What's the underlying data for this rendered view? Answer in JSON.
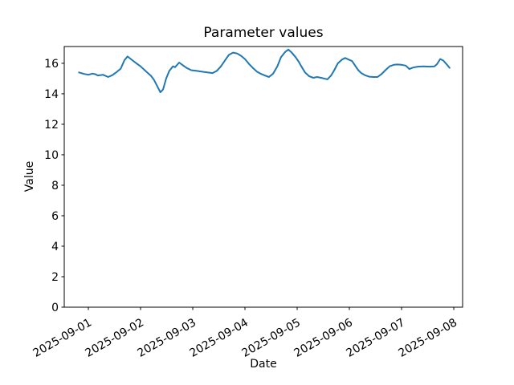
{
  "figure": {
    "background": "#ffffff"
  },
  "chart_data": {
    "type": "line",
    "title": "Parameter values",
    "xlabel": "Date",
    "ylabel": "Value",
    "grid": false,
    "legend": "none",
    "line_color": "#1f77b4",
    "axis_color": "#000000",
    "x_epoch": "2025-09-01",
    "x_tick_days": [
      0,
      1,
      2,
      3,
      4,
      5,
      6,
      7
    ],
    "x_tick_labels": [
      "2025-09-01",
      "2025-09-02",
      "2025-09-03",
      "2025-09-04",
      "2025-09-05",
      "2025-09-06",
      "2025-09-07",
      "2025-09-08"
    ],
    "x_tick_rotation_deg": 30,
    "y_ticks": [
      0,
      2,
      4,
      6,
      8,
      10,
      12,
      14,
      16
    ],
    "xlim_days": [
      -0.462,
      7.169
    ],
    "ylim": [
      0,
      17.1
    ],
    "series": [
      {
        "name": "parameter",
        "points_day_value": [
          [
            -0.18,
            15.4
          ],
          [
            -0.08,
            15.3
          ],
          [
            0.0,
            15.25
          ],
          [
            0.08,
            15.32
          ],
          [
            0.14,
            15.28
          ],
          [
            0.18,
            15.2
          ],
          [
            0.28,
            15.25
          ],
          [
            0.38,
            15.1
          ],
          [
            0.46,
            15.22
          ],
          [
            0.54,
            15.42
          ],
          [
            0.62,
            15.65
          ],
          [
            0.69,
            16.2
          ],
          [
            0.75,
            16.45
          ],
          [
            0.85,
            16.18
          ],
          [
            0.92,
            16.0
          ],
          [
            1.0,
            15.8
          ],
          [
            1.11,
            15.45
          ],
          [
            1.2,
            15.18
          ],
          [
            1.26,
            14.9
          ],
          [
            1.32,
            14.5
          ],
          [
            1.38,
            14.1
          ],
          [
            1.43,
            14.28
          ],
          [
            1.49,
            15.0
          ],
          [
            1.55,
            15.5
          ],
          [
            1.62,
            15.8
          ],
          [
            1.66,
            15.74
          ],
          [
            1.74,
            16.05
          ],
          [
            1.82,
            15.85
          ],
          [
            1.88,
            15.7
          ],
          [
            1.97,
            15.55
          ],
          [
            2.08,
            15.5
          ],
          [
            2.18,
            15.45
          ],
          [
            2.28,
            15.4
          ],
          [
            2.38,
            15.36
          ],
          [
            2.46,
            15.5
          ],
          [
            2.54,
            15.8
          ],
          [
            2.62,
            16.2
          ],
          [
            2.69,
            16.55
          ],
          [
            2.77,
            16.7
          ],
          [
            2.85,
            16.64
          ],
          [
            2.92,
            16.5
          ],
          [
            3.0,
            16.28
          ],
          [
            3.08,
            15.95
          ],
          [
            3.15,
            15.7
          ],
          [
            3.23,
            15.45
          ],
          [
            3.31,
            15.3
          ],
          [
            3.38,
            15.2
          ],
          [
            3.46,
            15.1
          ],
          [
            3.54,
            15.32
          ],
          [
            3.62,
            15.8
          ],
          [
            3.69,
            16.4
          ],
          [
            3.77,
            16.75
          ],
          [
            3.83,
            16.9
          ],
          [
            3.89,
            16.72
          ],
          [
            3.97,
            16.4
          ],
          [
            4.03,
            16.1
          ],
          [
            4.08,
            15.8
          ],
          [
            4.15,
            15.4
          ],
          [
            4.23,
            15.15
          ],
          [
            4.31,
            15.05
          ],
          [
            4.38,
            15.1
          ],
          [
            4.46,
            15.05
          ],
          [
            4.54,
            14.98
          ],
          [
            4.58,
            14.95
          ],
          [
            4.65,
            15.2
          ],
          [
            4.71,
            15.55
          ],
          [
            4.78,
            16.0
          ],
          [
            4.86,
            16.25
          ],
          [
            4.92,
            16.35
          ],
          [
            5.0,
            16.22
          ],
          [
            5.05,
            16.15
          ],
          [
            5.11,
            15.85
          ],
          [
            5.17,
            15.55
          ],
          [
            5.23,
            15.35
          ],
          [
            5.31,
            15.2
          ],
          [
            5.38,
            15.12
          ],
          [
            5.46,
            15.1
          ],
          [
            5.54,
            15.1
          ],
          [
            5.62,
            15.3
          ],
          [
            5.69,
            15.55
          ],
          [
            5.77,
            15.8
          ],
          [
            5.85,
            15.9
          ],
          [
            5.92,
            15.92
          ],
          [
            6.0,
            15.9
          ],
          [
            6.08,
            15.85
          ],
          [
            6.15,
            15.62
          ],
          [
            6.22,
            15.72
          ],
          [
            6.31,
            15.78
          ],
          [
            6.42,
            15.8
          ],
          [
            6.54,
            15.78
          ],
          [
            6.63,
            15.8
          ],
          [
            6.68,
            15.95
          ],
          [
            6.74,
            16.28
          ],
          [
            6.8,
            16.18
          ],
          [
            6.86,
            15.95
          ],
          [
            6.92,
            15.7
          ]
        ]
      }
    ]
  }
}
